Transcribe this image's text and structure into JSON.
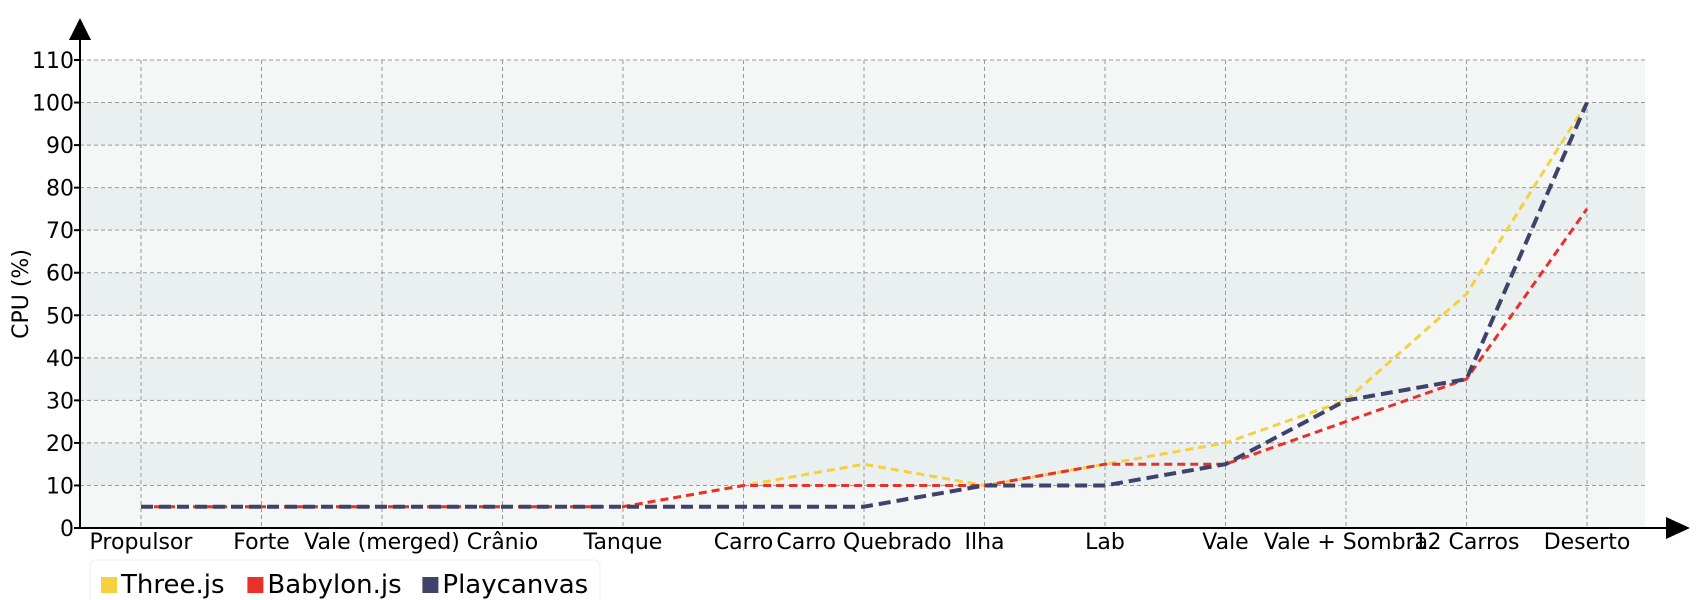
{
  "chart_data": {
    "type": "line",
    "title": "",
    "xlabel": "",
    "ylabel": "CPU (%)",
    "ylim": [
      0,
      110
    ],
    "yticks": [
      0,
      10,
      20,
      30,
      40,
      50,
      60,
      70,
      80,
      90,
      100,
      110
    ],
    "grid": true,
    "legend_position": "bottom-left",
    "categories": [
      "Propulsor",
      "Forte",
      "Vale (merged)",
      "Crânio",
      "Tanque",
      "Carro",
      "Carro Quebrado",
      "Ilha",
      "Lab",
      "Vale",
      "Vale + Sombra",
      "12 Carros",
      "Deserto"
    ],
    "series": [
      {
        "name": "Three.js",
        "color": "#f5d03f",
        "values": [
          5,
          5,
          5,
          5,
          5,
          10,
          15,
          10,
          15,
          20,
          30,
          55,
          100
        ]
      },
      {
        "name": "Babylon.js",
        "color": "#e8312a",
        "values": [
          5,
          5,
          5,
          5,
          5,
          10,
          10,
          10,
          15,
          15,
          25,
          35,
          75
        ]
      },
      {
        "name": "Playcanvas",
        "color": "#3f426a",
        "values": [
          5,
          5,
          5,
          5,
          5,
          5,
          5,
          10,
          10,
          15,
          30,
          35,
          100
        ]
      }
    ]
  }
}
